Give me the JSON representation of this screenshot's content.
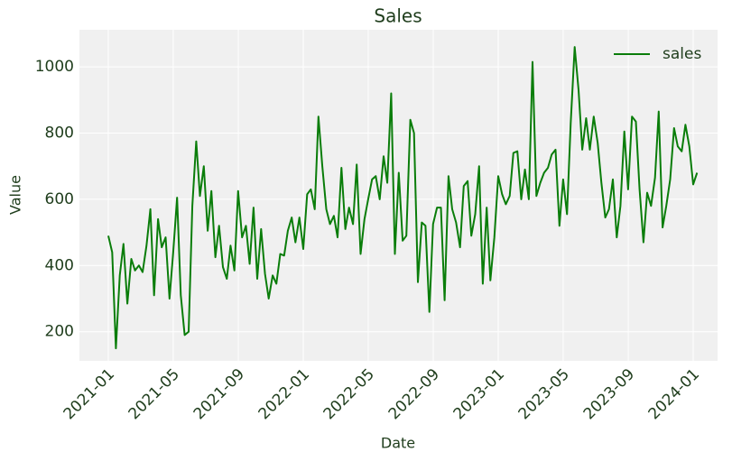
{
  "chart_data": {
    "type": "line",
    "title": "Sales",
    "xlabel": "Date",
    "ylabel": "Value",
    "x": [
      2021.0,
      2021.02,
      2021.039,
      2021.059,
      2021.078,
      2021.098,
      2021.118,
      2021.137,
      2021.157,
      2021.176,
      2021.196,
      2021.216,
      2021.235,
      2021.255,
      2021.274,
      2021.294,
      2021.314,
      2021.333,
      2021.353,
      2021.372,
      2021.392,
      2021.412,
      2021.431,
      2021.451,
      2021.47,
      2021.49,
      2021.51,
      2021.529,
      2021.549,
      2021.568,
      2021.588,
      2021.608,
      2021.627,
      2021.647,
      2021.666,
      2021.686,
      2021.706,
      2021.725,
      2021.745,
      2021.764,
      2021.784,
      2021.804,
      2021.823,
      2021.843,
      2021.862,
      2021.882,
      2021.902,
      2021.921,
      2021.941,
      2021.96,
      2021.98,
      2022.0,
      2022.02,
      2022.039,
      2022.059,
      2022.078,
      2022.098,
      2022.118,
      2022.137,
      2022.157,
      2022.176,
      2022.196,
      2022.216,
      2022.235,
      2022.255,
      2022.274,
      2022.294,
      2022.314,
      2022.333,
      2022.353,
      2022.372,
      2022.392,
      2022.412,
      2022.431,
      2022.451,
      2022.47,
      2022.49,
      2022.51,
      2022.529,
      2022.549,
      2022.568,
      2022.588,
      2022.608,
      2022.627,
      2022.647,
      2022.666,
      2022.686,
      2022.706,
      2022.725,
      2022.745,
      2022.764,
      2022.784,
      2022.804,
      2022.823,
      2022.843,
      2022.862,
      2022.882,
      2022.902,
      2022.921,
      2022.941,
      2022.96,
      2022.98,
      2023.0,
      2023.02,
      2023.039,
      2023.059,
      2023.078,
      2023.098,
      2023.118,
      2023.137,
      2023.157,
      2023.176,
      2023.196,
      2023.216,
      2023.235,
      2023.255,
      2023.274,
      2023.294,
      2023.314,
      2023.333,
      2023.353,
      2023.372,
      2023.392,
      2023.412,
      2023.431,
      2023.451,
      2023.47,
      2023.49,
      2023.51,
      2023.529,
      2023.549,
      2023.568,
      2023.588,
      2023.608,
      2023.627,
      2023.647,
      2023.666,
      2023.686,
      2023.706,
      2023.725,
      2023.745,
      2023.764,
      2023.784,
      2023.804,
      2023.823,
      2023.843,
      2023.862,
      2023.882,
      2023.902,
      2023.921,
      2023.941,
      2023.96,
      2023.98,
      2024.0,
      2024.02
    ],
    "series": [
      {
        "name": "sales",
        "color": "#0a7d0a",
        "values": [
          490,
          440,
          150,
          370,
          465,
          285,
          420,
          385,
          400,
          380,
          460,
          570,
          310,
          540,
          455,
          485,
          300,
          440,
          605,
          310,
          190,
          200,
          580,
          775,
          610,
          700,
          505,
          625,
          425,
          520,
          395,
          360,
          460,
          385,
          625,
          485,
          520,
          405,
          575,
          360,
          510,
          375,
          300,
          370,
          345,
          435,
          430,
          505,
          545,
          470,
          545,
          450,
          615,
          630,
          570,
          850,
          700,
          570,
          525,
          550,
          485,
          695,
          510,
          575,
          525,
          705,
          435,
          540,
          600,
          660,
          670,
          600,
          730,
          650,
          920,
          435,
          680,
          475,
          490,
          840,
          800,
          350,
          530,
          520,
          260,
          525,
          575,
          575,
          295,
          670,
          570,
          530,
          455,
          640,
          655,
          490,
          555,
          700,
          345,
          575,
          355,
          485,
          670,
          615,
          585,
          610,
          740,
          745,
          600,
          690,
          600,
          1015,
          610,
          650,
          680,
          695,
          735,
          750,
          520,
          660,
          555,
          830,
          1060,
          930,
          750,
          845,
          750,
          850,
          770,
          650,
          545,
          570,
          660,
          485,
          580,
          805,
          630,
          850,
          835,
          630,
          470,
          620,
          580,
          665,
          865,
          515,
          580,
          660,
          815,
          760,
          745,
          825,
          760,
          645,
          680
        ]
      }
    ],
    "xlim": [
      2020.852,
      2024.125
    ],
    "xticks": [
      {
        "value": 2021.0,
        "label": "2021-01"
      },
      {
        "value": 2021.333,
        "label": "2021-05"
      },
      {
        "value": 2021.667,
        "label": "2021-09"
      },
      {
        "value": 2022.0,
        "label": "2022-01"
      },
      {
        "value": 2022.333,
        "label": "2022-05"
      },
      {
        "value": 2022.667,
        "label": "2022-09"
      },
      {
        "value": 2023.0,
        "label": "2023-01"
      },
      {
        "value": 2023.333,
        "label": "2023-05"
      },
      {
        "value": 2023.667,
        "label": "2023-09"
      },
      {
        "value": 2024.0,
        "label": "2024-01"
      }
    ],
    "ylim": [
      112,
      1112
    ],
    "yticks": [
      200,
      400,
      600,
      800,
      1000
    ],
    "grid": true,
    "legend": "upper right"
  }
}
